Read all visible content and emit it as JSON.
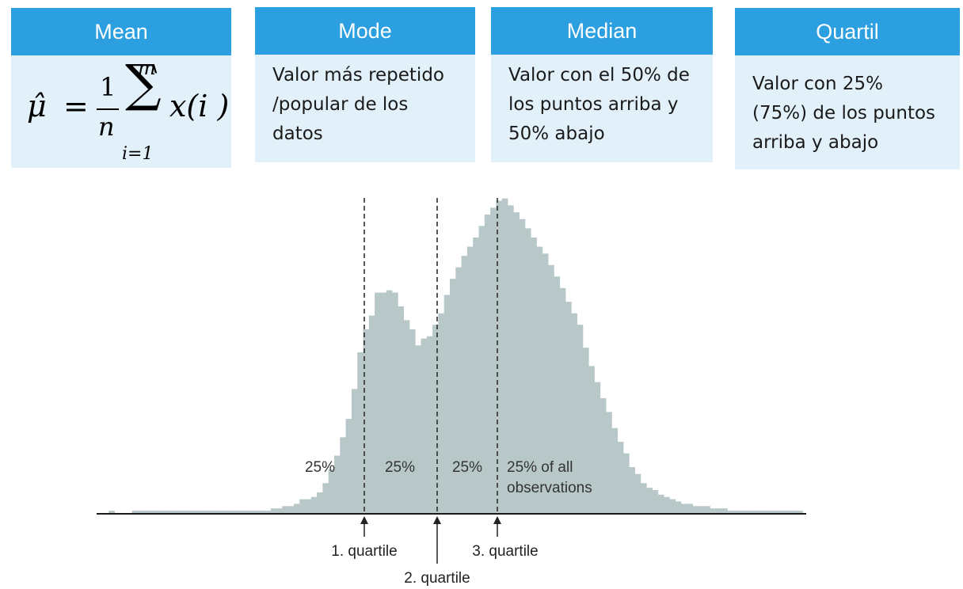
{
  "cards": {
    "mean": {
      "title": "Mean",
      "formula": {
        "lhs": "μ̂",
        "equals": "=",
        "numerator": "1",
        "denominator": "n",
        "sum": "∑",
        "upper": "m",
        "lower": "i=1",
        "term": "x(i )"
      }
    },
    "mode": {
      "title": "Mode",
      "lines": [
        "Valor más repetido",
        "/popular de los",
        "datos"
      ]
    },
    "median": {
      "title": "Median",
      "lines": [
        "Valor con el 50% de",
        "los puntos arriba y",
        "50% abajo"
      ]
    },
    "quartil": {
      "title": "Quartil",
      "lines": [
        "Valor con 25%",
        "(75%) de los puntos",
        "arriba y abajo"
      ]
    }
  },
  "chart_data": {
    "type": "bar",
    "bar_color": "#b8c8c8",
    "values": [
      0,
      1,
      0,
      0,
      0,
      1,
      1,
      1,
      1,
      1,
      1,
      1,
      1,
      1,
      1,
      1,
      1,
      1,
      1,
      1,
      1,
      1,
      1,
      1,
      1,
      1,
      1,
      1,
      1,
      2,
      2,
      3,
      3,
      4,
      6,
      6,
      7,
      9,
      13,
      19,
      25,
      33,
      41,
      54,
      70,
      80,
      86,
      96,
      96,
      97,
      96,
      90,
      84,
      80,
      73,
      76,
      77,
      82,
      87,
      95,
      102,
      107,
      112,
      116,
      120,
      125,
      130,
      133,
      136,
      137,
      134,
      131,
      128,
      124,
      120,
      116,
      113,
      108,
      103,
      98,
      92,
      87,
      82,
      72,
      64,
      57,
      50,
      44,
      37,
      31,
      26,
      20,
      17,
      13,
      11,
      10,
      8,
      7,
      6,
      5,
      4,
      4,
      3,
      3,
      3,
      2,
      2,
      2,
      1,
      1,
      1,
      1,
      1,
      1,
      1,
      1,
      1,
      1,
      1,
      1,
      1
    ],
    "quartiles": [
      {
        "label": "1. quartile"
      },
      {
        "label": "2. quartile"
      },
      {
        "label": "3. quartile"
      }
    ],
    "region_labels": [
      "25%",
      "25%",
      "25%",
      "25% of all",
      "observations"
    ]
  }
}
